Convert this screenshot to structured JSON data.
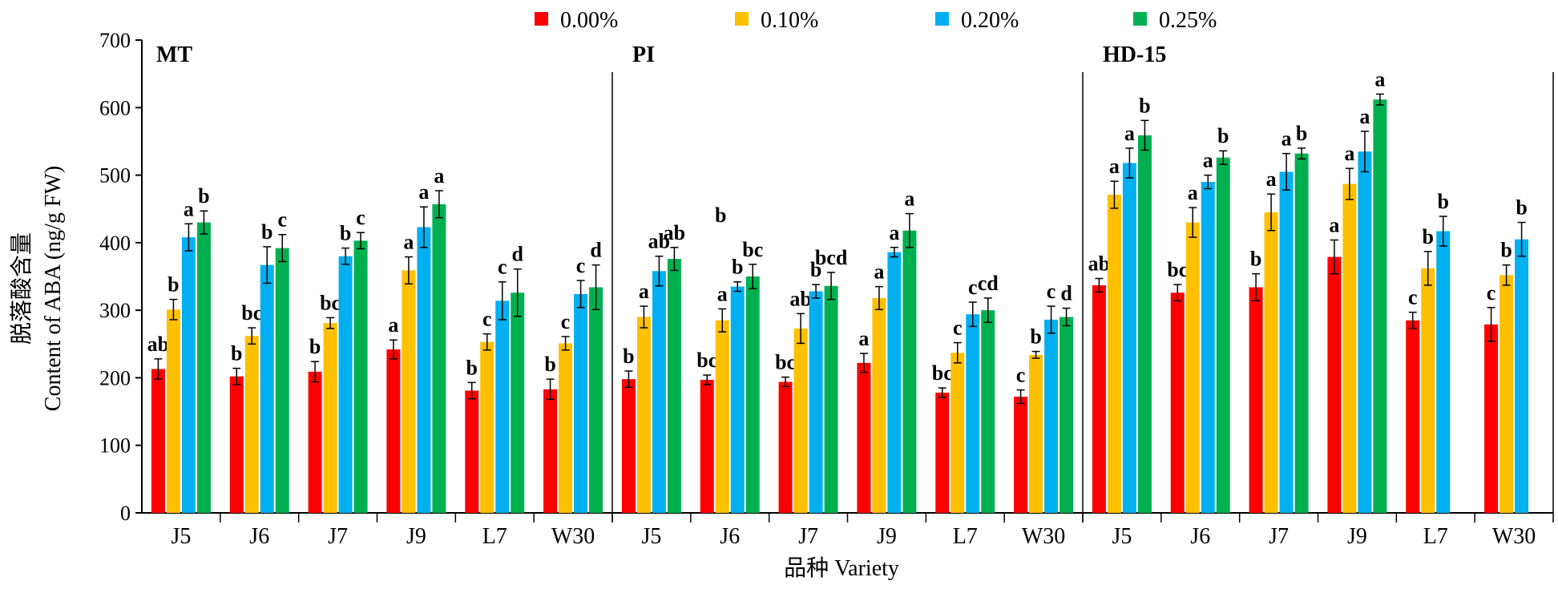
{
  "chart_data": {
    "type": "bar",
    "title": "",
    "xlabel": "品种 Variety",
    "ylabel_cn": "脱落酸含量",
    "ylabel_en": "Content of ABA (ng/g FW)",
    "ylim": [
      0,
      700
    ],
    "yticks": [
      0,
      100,
      200,
      300,
      400,
      500,
      600,
      700
    ],
    "grid": false,
    "legend_position": "top-center",
    "series": [
      {
        "name": "0.00%",
        "color": "#ff0000"
      },
      {
        "name": "0.10%",
        "color": "#ffc000"
      },
      {
        "name": "0.20%",
        "color": "#00b0f0"
      },
      {
        "name": "0.25%",
        "color": "#00b050"
      }
    ],
    "panels": [
      "MT",
      "PI",
      "HD-15"
    ],
    "groups": [
      {
        "panel": "MT",
        "category": "J5",
        "values": [
          213,
          301,
          408,
          430
        ],
        "errors": [
          15,
          15,
          20,
          17
        ],
        "letters": [
          "ab",
          "b",
          "a",
          "b"
        ]
      },
      {
        "panel": "MT",
        "category": "J6",
        "values": [
          202,
          262,
          367,
          392
        ],
        "errors": [
          12,
          12,
          27,
          20
        ],
        "letters": [
          "b",
          "bc",
          "b",
          "c"
        ]
      },
      {
        "panel": "MT",
        "category": "J7",
        "values": [
          209,
          281,
          380,
          403
        ],
        "errors": [
          15,
          8,
          12,
          12
        ],
        "letters": [
          "b",
          "bc",
          "b",
          "c"
        ]
      },
      {
        "panel": "MT",
        "category": "J9",
        "values": [
          242,
          359,
          423,
          457
        ],
        "errors": [
          14,
          20,
          30,
          20
        ],
        "letters": [
          "a",
          "a",
          "a",
          "a"
        ]
      },
      {
        "panel": "MT",
        "category": "L7",
        "values": [
          181,
          253,
          314,
          326
        ],
        "errors": [
          12,
          12,
          28,
          35
        ],
        "letters": [
          "b",
          "c",
          "c",
          "d"
        ]
      },
      {
        "panel": "MT",
        "category": "W30",
        "values": [
          183,
          251,
          324,
          334
        ],
        "errors": [
          15,
          10,
          20,
          33
        ],
        "letters": [
          "b",
          "c",
          "c",
          "d"
        ]
      },
      {
        "panel": "PI",
        "category": "J5",
        "values": [
          198,
          290,
          358,
          376
        ],
        "errors": [
          12,
          16,
          22,
          17
        ],
        "letters": [
          "b",
          "a",
          "ab",
          "ab"
        ]
      },
      {
        "panel": "PI",
        "category": "J6",
        "values": [
          197,
          285,
          335,
          350
        ],
        "errors": [
          7,
          17,
          7,
          18
        ],
        "letters": [
          "bc",
          "a",
          "b",
          "bc"
        ],
        "extra_letter": "b"
      },
      {
        "panel": "PI",
        "category": "J7",
        "values": [
          194,
          273,
          328,
          336
        ],
        "errors": [
          7,
          22,
          10,
          20
        ],
        "letters": [
          "bc",
          "ab",
          "b",
          "bcd"
        ]
      },
      {
        "panel": "PI",
        "category": "J9",
        "values": [
          222,
          318,
          386,
          418
        ],
        "errors": [
          14,
          17,
          7,
          25
        ],
        "letters": [
          "a",
          "a",
          "a",
          "a"
        ]
      },
      {
        "panel": "PI",
        "category": "L7",
        "values": [
          178,
          237,
          294,
          300
        ],
        "errors": [
          7,
          15,
          18,
          18
        ],
        "letters": [
          "bc",
          "c",
          "c",
          "cd"
        ]
      },
      {
        "panel": "PI",
        "category": "W30",
        "values": [
          172,
          234,
          286,
          290
        ],
        "errors": [
          10,
          5,
          20,
          13
        ],
        "letters": [
          "c",
          "b",
          "c",
          "d"
        ]
      },
      {
        "panel": "HD-15",
        "category": "J5",
        "values": [
          337,
          471,
          518,
          559
        ],
        "errors": [
          10,
          20,
          22,
          22
        ],
        "letters": [
          "ab",
          "a",
          "a",
          "b"
        ]
      },
      {
        "panel": "HD-15",
        "category": "J6",
        "values": [
          326,
          430,
          490,
          526
        ],
        "errors": [
          12,
          22,
          10,
          10
        ],
        "letters": [
          "bc",
          "a",
          "a",
          "b"
        ]
      },
      {
        "panel": "HD-15",
        "category": "J7",
        "values": [
          334,
          445,
          505,
          532
        ],
        "errors": [
          20,
          27,
          27,
          8
        ],
        "letters": [
          "b",
          "a",
          "a",
          "b"
        ]
      },
      {
        "panel": "HD-15",
        "category": "J9",
        "values": [
          379,
          487,
          535,
          612
        ],
        "errors": [
          25,
          23,
          30,
          8
        ],
        "letters": [
          "a",
          "a",
          "a",
          "a"
        ]
      },
      {
        "panel": "HD-15",
        "category": "L7",
        "values": [
          285,
          362,
          417,
          null
        ],
        "errors": [
          12,
          25,
          22,
          null
        ],
        "letters": [
          "c",
          "b",
          "b",
          null
        ]
      },
      {
        "panel": "HD-15",
        "category": "W30",
        "values": [
          279,
          352,
          405,
          null
        ],
        "errors": [
          25,
          15,
          25,
          null
        ],
        "letters": [
          "c",
          "b",
          "b",
          null
        ]
      }
    ]
  }
}
